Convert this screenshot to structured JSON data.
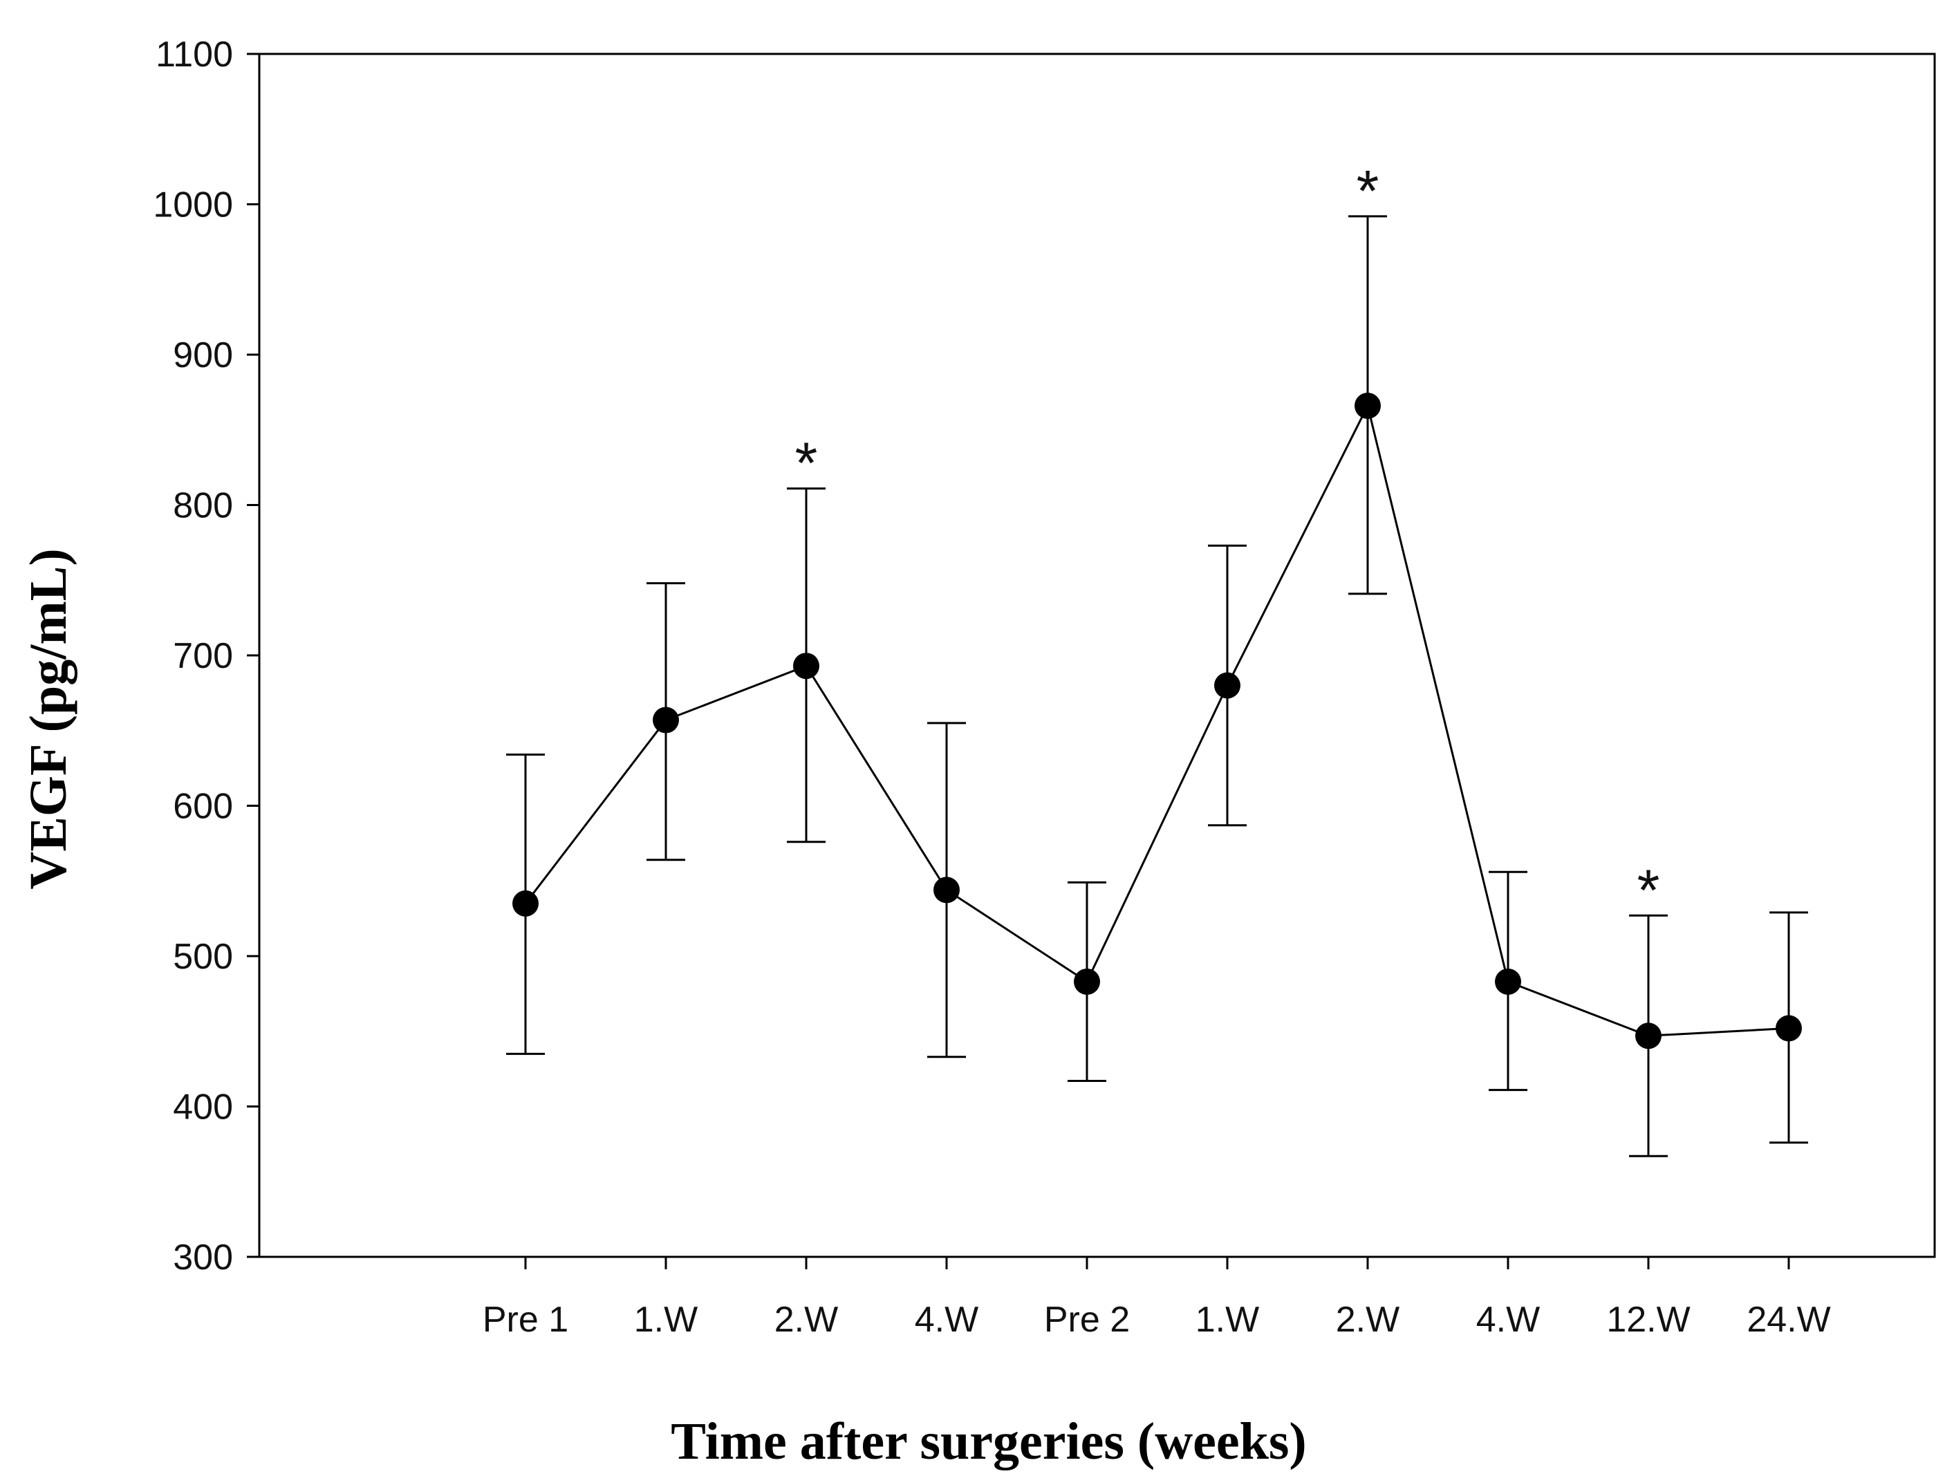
{
  "chart_data": {
    "type": "line",
    "title": "",
    "xlabel": "Time after surgeries (weeks)",
    "ylabel": "VEGF (pg/mL)",
    "ylim": [
      300,
      1100
    ],
    "yticks": [
      300,
      400,
      500,
      600,
      700,
      800,
      900,
      1000,
      1100
    ],
    "categories": [
      "Pre 1",
      "1.W",
      "2.W",
      "4.W",
      "Pre 2",
      "1.W",
      "2.W",
      "4.W",
      "12.W",
      "24.W"
    ],
    "series": [
      {
        "name": "VEGF",
        "values": [
          535,
          657,
          693,
          544,
          483,
          680,
          866,
          483,
          447,
          452
        ],
        "error_upper": [
          634,
          748,
          811,
          655,
          549,
          773,
          992,
          556,
          527,
          529
        ],
        "error_lower": [
          435,
          564,
          576,
          433,
          417,
          587,
          741,
          411,
          367,
          376
        ],
        "significant": [
          false,
          false,
          true,
          false,
          false,
          false,
          true,
          false,
          true,
          false
        ]
      }
    ],
    "significance_marker": "*",
    "grid": false,
    "legend": "none",
    "colors": {
      "line": "#000000",
      "marker": "#000000",
      "axis": "#000000",
      "text": "#111111"
    }
  }
}
